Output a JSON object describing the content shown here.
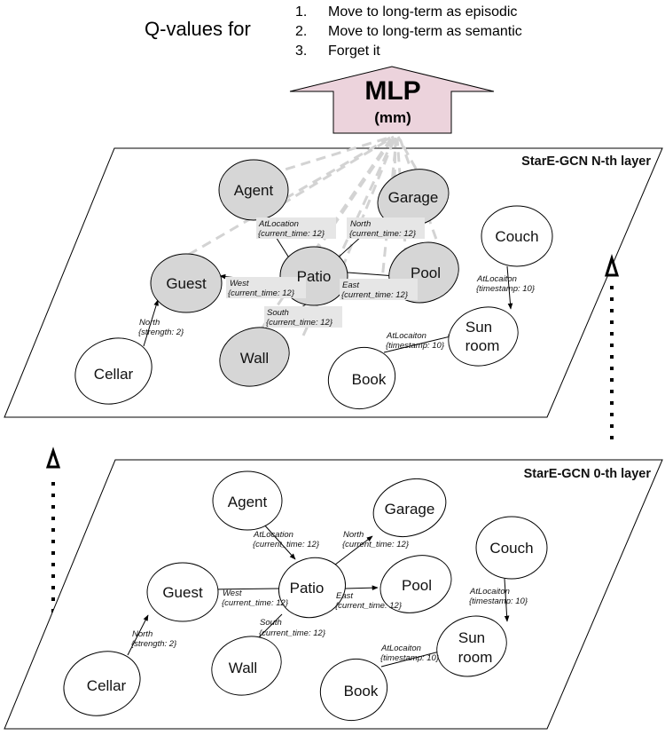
{
  "header": {
    "qvalues_prefix": "Q-values for",
    "options": [
      {
        "num": "1.",
        "text": "Move to long-term as episodic"
      },
      {
        "num": "2.",
        "text": "Move to long-term as semantic"
      },
      {
        "num": "3.",
        "text": "Forget it"
      }
    ]
  },
  "mlp": {
    "title": "MLP",
    "subtitle": "(mm)",
    "fill": "#ecd3dc"
  },
  "colors": {
    "highlight_node": "#d6d6d6",
    "plain_node": "#ffffff",
    "dash": "#d3d3d3",
    "stroke": "#000000"
  },
  "layers": {
    "top": {
      "title": "StarE-GCN N-th layer",
      "nodes": {
        "agent": "Agent",
        "garage": "Garage",
        "couch": "Couch",
        "guest": "Guest",
        "patio": "Patio",
        "pool": "Pool",
        "sunroom_1": "Sun",
        "sunroom_2": "room",
        "cellar": "Cellar",
        "wall": "Wall",
        "book": "Book"
      },
      "edges": {
        "agent_patio_1": "AtLocation",
        "agent_patio_2": "{current_time: 12}",
        "patio_garage_1": "North",
        "patio_garage_2": "{current_time: 12}",
        "patio_guest_1": "West",
        "patio_guest_2": "{current_time: 12}",
        "patio_pool_1": "East",
        "patio_pool_2": "{current_time: 12}",
        "patio_wall_1": "South",
        "patio_wall_2": "{current_time: 12}",
        "cellar_guest_1": "North",
        "cellar_guest_2": "{strength: 2}",
        "couch_sun_1": "AtLocaiton",
        "couch_sun_2": "{timestamp: 10}",
        "book_sun_1": "AtLocaiton",
        "book_sun_2": "{timestamp: 10}"
      }
    },
    "bottom": {
      "title": "StarE-GCN 0-th layer",
      "nodes": {
        "agent": "Agent",
        "garage": "Garage",
        "couch": "Couch",
        "guest": "Guest",
        "patio": "Patio",
        "pool": "Pool",
        "sunroom_1": "Sun",
        "sunroom_2": "room",
        "cellar": "Cellar",
        "wall": "Wall",
        "book": "Book"
      },
      "edges": {
        "agent_patio_1": "AtLocation",
        "agent_patio_2": "{current_time: 12}",
        "patio_garage_1": "North",
        "patio_garage_2": "{current_time: 12}",
        "patio_guest_1": "West",
        "patio_guest_2": "{current_time: 12}",
        "patio_pool_1": "East",
        "patio_pool_2": "{current_time: 12}",
        "patio_wall_1": "South",
        "patio_wall_2": "{current_time: 12}",
        "cellar_guest_1": "North",
        "cellar_guest_2": "{strength: 2}",
        "couch_sun_1": "AtLocaiton",
        "couch_sun_2": "{timestamp: 10}",
        "book_sun_1": "AtLocaiton",
        "book_sun_2": "{timestamp: 10}"
      }
    }
  }
}
